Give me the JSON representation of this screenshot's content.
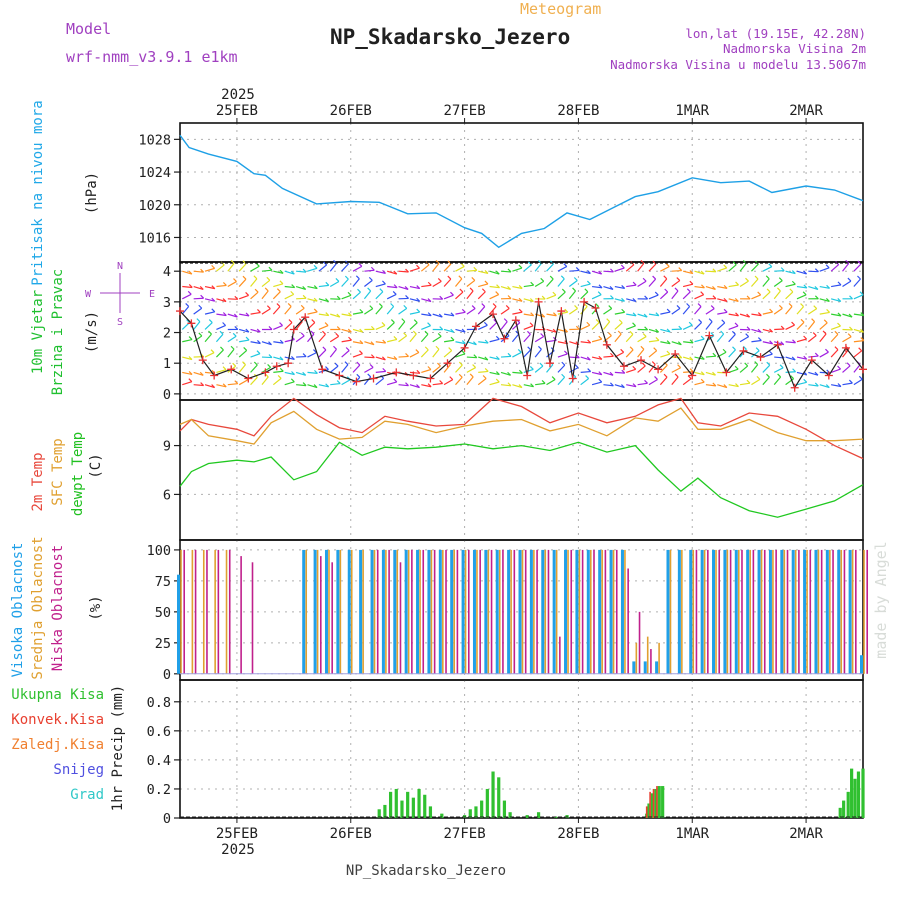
{
  "header": {
    "app_title": "Meteogram",
    "location": "NP_Skadarsko_Jezero",
    "model_label": "Model",
    "model_name": "wrf-nmm_v3.9.1 e1km",
    "lonlat": "lon,lat (19.15E, 42.28N)",
    "altitude": "Nadmorska Visina 2m",
    "model_altitude": "Nadmorska Visina u modelu 13.5067m",
    "footer_location": "NP_Skadarsko_Jezero",
    "watermark": "made by Angel"
  },
  "colors": {
    "pressure": "#1ea0e6",
    "t2m": "#e8483c",
    "sfc": "#e0a030",
    "dew": "#20c820",
    "high_cloud": "#20a0e8",
    "mid_cloud": "#e0a030",
    "low_cloud": "#c0208c",
    "total_precip": "#30c030",
    "conv_precip": "#e84030",
    "frozen_precip": "#f08030",
    "snow": "#5050e0",
    "graupel": "#30c8c8",
    "wind_barb_sample": [
      "#ff3030",
      "#ff9020",
      "#e0e020",
      "#30d030",
      "#20c8e0",
      "#3050f0",
      "#a020e0"
    ]
  },
  "chart_data": [
    {
      "type": "line",
      "id": "pressure",
      "ylabel_title": "Pritisak na nivou mora",
      "ylabel_unit": "(hPa)",
      "yticks": [
        1016,
        1020,
        1024,
        1028
      ],
      "ylim": [
        1013,
        1030
      ],
      "grid": true,
      "x_days": [
        0,
        0.08,
        0.25,
        0.5,
        0.65,
        0.75,
        0.9,
        1.2,
        1.5,
        1.75,
        2.0,
        2.25,
        2.5,
        2.65,
        2.8,
        3.0,
        3.2,
        3.4,
        3.6,
        3.8,
        4.0,
        4.2,
        4.5,
        4.75,
        5.0,
        5.2,
        5.5,
        5.75,
        6.0
      ],
      "series": [
        {
          "name": "",
          "values": [
            1028.5,
            1027.0,
            1026.2,
            1025.3,
            1023.8,
            1023.6,
            1022.0,
            1020.1,
            1020.4,
            1020.3,
            1018.9,
            1019.0,
            1017.2,
            1016.5,
            1014.8,
            1016.5,
            1017.1,
            1019.0,
            1018.2,
            1019.6,
            1021.0,
            1021.6,
            1023.3,
            1022.7,
            1022.9,
            1021.5,
            1022.3,
            1021.8,
            1020.5
          ]
        }
      ]
    },
    {
      "type": "line",
      "id": "wind",
      "ylabel_title": "10m Vjetar",
      "ylabel_title2": "Brzina i Pravac",
      "ylabel_unit": "(m/s)",
      "compass": [
        "N",
        "E",
        "S",
        "W"
      ],
      "yticks": [
        0,
        1,
        2,
        3,
        4
      ],
      "ylim": [
        -0.2,
        4.3
      ],
      "barb_rows_ms": [
        0.3,
        0.7,
        1.2,
        1.7,
        2.1,
        2.6,
        3.1,
        3.5,
        4.0
      ],
      "x_days": [
        0,
        0.1,
        0.2,
        0.3,
        0.45,
        0.6,
        0.75,
        0.85,
        0.95,
        1.0,
        1.1,
        1.25,
        1.4,
        1.55,
        1.7,
        1.9,
        2.05,
        2.2,
        2.35,
        2.5,
        2.6,
        2.75,
        2.85,
        2.95,
        3.05,
        3.15,
        3.25,
        3.35,
        3.45,
        3.55,
        3.65,
        3.75,
        3.9,
        4.05,
        4.2,
        4.35,
        4.5,
        4.65,
        4.8,
        4.95,
        5.1,
        5.25,
        5.4,
        5.55,
        5.7,
        5.85,
        6.0
      ],
      "series": [
        {
          "name": "",
          "values": [
            2.7,
            2.3,
            1.1,
            0.6,
            0.8,
            0.5,
            0.7,
            0.9,
            1.0,
            2.1,
            2.5,
            0.8,
            0.6,
            0.4,
            0.5,
            0.7,
            0.6,
            0.5,
            1.0,
            1.5,
            2.2,
            2.6,
            1.8,
            2.4,
            0.6,
            3.0,
            1.0,
            2.7,
            0.5,
            3.0,
            2.8,
            1.6,
            0.9,
            1.1,
            0.8,
            1.3,
            0.6,
            1.9,
            0.7,
            1.4,
            1.2,
            1.6,
            0.2,
            1.1,
            0.6,
            1.5,
            0.8
          ]
        }
      ]
    },
    {
      "type": "line",
      "id": "temperature",
      "ylabel_t2m": "2m Temp",
      "ylabel_sfc": "SFC Temp",
      "ylabel_dew": "dewpt Temp",
      "ylabel_unit": "(C)",
      "yticks": [
        6,
        9
      ],
      "ylim": [
        3.2,
        11.8
      ],
      "grid": true,
      "x_days": [
        0,
        0.1,
        0.25,
        0.5,
        0.65,
        0.8,
        1.0,
        1.2,
        1.4,
        1.6,
        1.8,
        2.0,
        2.25,
        2.5,
        2.75,
        3.0,
        3.25,
        3.5,
        3.75,
        4.0,
        4.2,
        4.4,
        4.55,
        4.75,
        5.0,
        5.25,
        5.5,
        5.75,
        6.0
      ],
      "series": [
        {
          "name": "",
          "values": [
            9.9,
            10.6,
            10.3,
            10.0,
            9.6,
            10.8,
            11.9,
            10.9,
            10.1,
            9.8,
            10.8,
            10.5,
            10.2,
            10.3,
            11.9,
            11.4,
            10.4,
            11.0,
            10.4,
            10.8,
            11.5,
            11.9,
            10.4,
            10.2,
            11.0,
            10.8,
            10.0,
            9.0,
            8.2
          ]
        },
        {
          "name": "",
          "values": [
            10.3,
            10.6,
            9.6,
            9.3,
            9.1,
            10.4,
            11.1,
            10.0,
            9.4,
            9.5,
            10.5,
            10.3,
            9.8,
            10.2,
            10.5,
            10.6,
            9.9,
            10.3,
            9.6,
            10.7,
            10.5,
            11.3,
            10.0,
            10.0,
            10.6,
            9.8,
            9.3,
            9.3,
            9.4
          ]
        },
        {
          "name": "",
          "values": [
            6.5,
            7.4,
            7.9,
            8.1,
            8.0,
            8.3,
            6.9,
            7.4,
            9.2,
            8.4,
            8.9,
            8.8,
            8.9,
            9.1,
            8.8,
            9.0,
            8.7,
            9.2,
            8.6,
            9.0,
            7.5,
            6.2,
            7.0,
            5.8,
            5.0,
            4.6,
            5.1,
            5.6,
            6.6
          ]
        }
      ]
    },
    {
      "type": "bar",
      "id": "cloud",
      "ylabel_high": "Visoka Oblacnost",
      "ylabel_mid": "Srednja Oblacnost",
      "ylabel_low": "Niska Oblacnost",
      "ylabel_unit": "(%)",
      "yticks": [
        0,
        25,
        50,
        75,
        100
      ],
      "ylim": [
        -5,
        108
      ],
      "grid": true,
      "x_days": [
        0.0,
        0.1,
        0.2,
        0.3,
        0.4,
        0.5,
        0.6,
        0.7,
        0.8,
        0.9,
        1.0,
        1.1,
        1.2,
        1.3,
        1.4,
        1.5,
        1.6,
        1.7,
        1.8,
        1.9,
        2.0,
        2.1,
        2.2,
        2.3,
        2.4,
        2.5,
        2.6,
        2.7,
        2.8,
        2.9,
        3.0,
        3.1,
        3.2,
        3.3,
        3.4,
        3.5,
        3.6,
        3.7,
        3.8,
        3.9,
        4.0,
        4.1,
        4.2,
        4.3,
        4.4,
        4.5,
        4.6,
        4.7,
        4.8,
        4.9,
        5.0,
        5.1,
        5.2,
        5.3,
        5.4,
        5.5,
        5.6,
        5.7,
        5.8,
        5.9,
        6.0
      ],
      "series": [
        {
          "name": "",
          "values": [
            80,
            0,
            0,
            0,
            0,
            0,
            0,
            0,
            0,
            0,
            0,
            100,
            100,
            100,
            100,
            100,
            100,
            100,
            100,
            100,
            100,
            100,
            100,
            100,
            100,
            100,
            100,
            100,
            100,
            100,
            100,
            100,
            100,
            100,
            100,
            100,
            100,
            100,
            100,
            100,
            10,
            10,
            10,
            100,
            100,
            100,
            100,
            100,
            100,
            100,
            100,
            100,
            100,
            100,
            100,
            100,
            100,
            100,
            100,
            100,
            15
          ]
        },
        {
          "name": "",
          "values": [
            100,
            100,
            100,
            100,
            100,
            0,
            0,
            0,
            0,
            0,
            0,
            100,
            100,
            100,
            100,
            100,
            100,
            100,
            100,
            100,
            100,
            100,
            100,
            100,
            100,
            100,
            100,
            100,
            100,
            100,
            100,
            100,
            100,
            100,
            100,
            100,
            100,
            100,
            100,
            100,
            25,
            30,
            25,
            100,
            100,
            100,
            100,
            100,
            100,
            100,
            100,
            100,
            100,
            100,
            100,
            100,
            100,
            100,
            100,
            100,
            100
          ]
        },
        {
          "name": "",
          "values": [
            100,
            100,
            100,
            100,
            100,
            95,
            90,
            0,
            0,
            0,
            0,
            0,
            95,
            90,
            0,
            0,
            0,
            100,
            100,
            90,
            100,
            100,
            100,
            100,
            100,
            100,
            100,
            100,
            100,
            100,
            100,
            100,
            100,
            30,
            100,
            100,
            100,
            100,
            100,
            85,
            50,
            20,
            0,
            0,
            0,
            100,
            100,
            100,
            100,
            100,
            100,
            100,
            100,
            100,
            100,
            100,
            100,
            100,
            100,
            100,
            100
          ]
        }
      ]
    },
    {
      "type": "bar",
      "id": "precip",
      "ylabel_unit": "1hr Precip (mm)",
      "legend": [
        "Ukupna Kisa",
        "Konvek.Kisa",
        "Zaledj.Kisa",
        "Snijeg",
        "Grad"
      ],
      "yticks": [
        0,
        0.2,
        0.4,
        0.6,
        0.8
      ],
      "ylim": [
        0,
        0.95
      ],
      "grid": true,
      "x_days": [
        1.75,
        1.8,
        1.85,
        1.9,
        1.95,
        2.0,
        2.05,
        2.1,
        2.15,
        2.2,
        2.3,
        2.5,
        2.55,
        2.6,
        2.65,
        2.7,
        2.75,
        2.8,
        2.85,
        2.9,
        3.05,
        3.15,
        3.3,
        3.4,
        4.1,
        4.12,
        4.15,
        4.18,
        4.21,
        4.24,
        5.8,
        5.83,
        5.87,
        5.9,
        5.93,
        5.96,
        6.0
      ],
      "series": [
        {
          "name": "",
          "values": [
            0.06,
            0.09,
            0.18,
            0.2,
            0.12,
            0.18,
            0.14,
            0.2,
            0.16,
            0.08,
            0.03,
            0.02,
            0.06,
            0.08,
            0.12,
            0.2,
            0.32,
            0.28,
            0.12,
            0.04,
            0.02,
            0.04,
            0.01,
            0.02,
            0.03,
            0.1,
            0.17,
            0.2,
            0.22,
            0.22,
            0.07,
            0.12,
            0.18,
            0.34,
            0.27,
            0.32,
            0.34
          ]
        },
        {
          "name": "",
          "values": [
            0,
            0,
            0,
            0,
            0,
            0,
            0,
            0,
            0,
            0,
            0,
            0,
            0,
            0,
            0,
            0,
            0,
            0,
            0,
            0,
            0,
            0,
            0,
            0,
            0,
            0.08,
            0.18,
            0.2,
            0.22,
            0,
            0,
            0,
            0,
            0,
            0,
            0,
            0
          ]
        }
      ]
    }
  ],
  "x_axis": {
    "year": "2025",
    "days": [
      {
        "label": "25FEB",
        "x": 0.5
      },
      {
        "label": "26FEB",
        "x": 1.5
      },
      {
        "label": "27FEB",
        "x": 2.5
      },
      {
        "label": "28FEB",
        "x": 3.5
      },
      {
        "label": "1MAR",
        "x": 4.5
      },
      {
        "label": "2MAR",
        "x": 5.5
      }
    ],
    "xlim": [
      0,
      6
    ]
  }
}
